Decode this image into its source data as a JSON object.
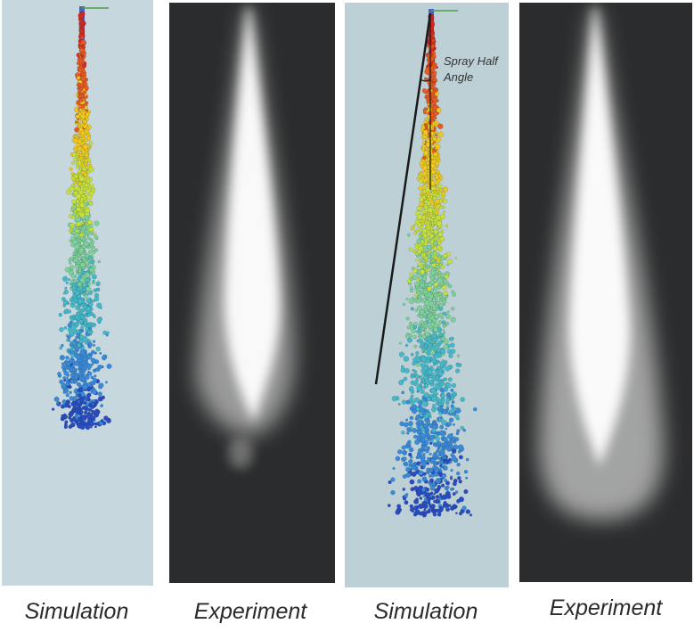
{
  "captions": [
    "Simulation",
    "Experiment",
    "Simulation",
    "Experiment"
  ],
  "annotation": {
    "line1": "Spray Half",
    "line2": "Angle"
  },
  "colors": {
    "sim_background": "#c6d8de",
    "exp_background": "#2b2c2d",
    "droplet_palette": [
      "#d42a1f",
      "#e85a20",
      "#f0c81e",
      "#c8e03a",
      "#7fd09a",
      "#46b8c8",
      "#3a8ad8",
      "#2a4cc0"
    ]
  }
}
